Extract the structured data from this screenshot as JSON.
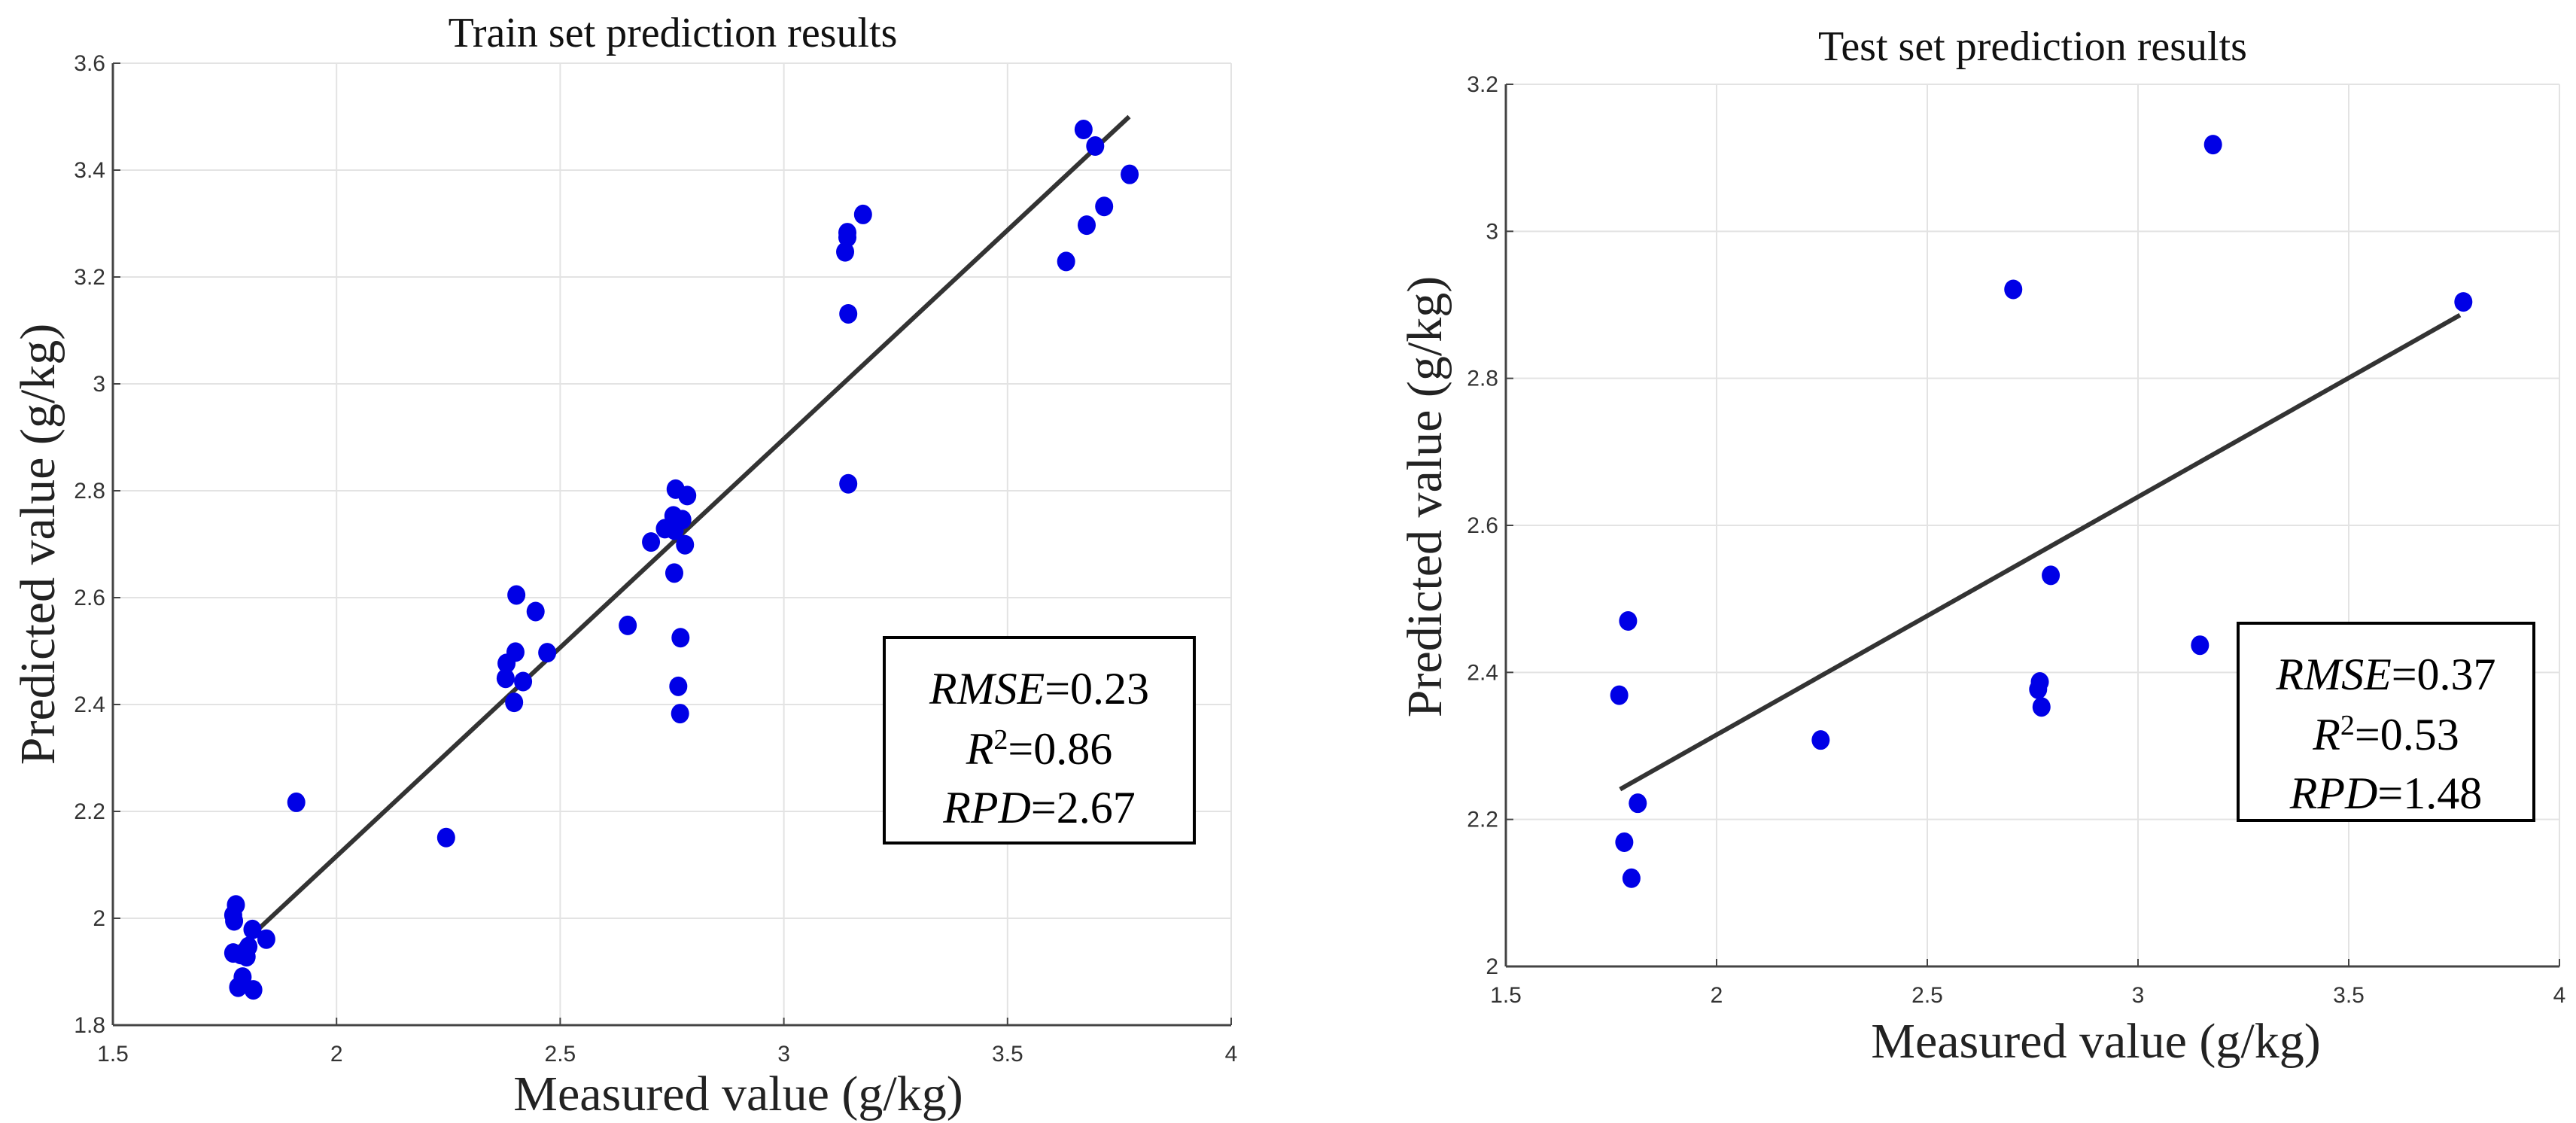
{
  "chart_data": [
    {
      "type": "scatter",
      "title": "Train set prediction results",
      "xlabel": "Measured value (g/kg)",
      "ylabel": "Predicted value  (g/kg)",
      "xlim": [
        1.5,
        4
      ],
      "ylim": [
        1.8,
        3.6
      ],
      "xticks": [
        "1.5",
        "2",
        "2.5",
        "3",
        "3.5",
        "4"
      ],
      "yticks": [
        "1.8",
        "2",
        "2.2",
        "2.4",
        "2.6",
        "2.8",
        "3",
        "3.2",
        "3.4",
        "3.6"
      ],
      "grid": true,
      "point_color": "#0000e6",
      "line_color": "#333333",
      "points": [
        [
          3.67,
          3.476
        ],
        [
          3.696,
          3.445
        ],
        [
          3.773,
          3.392
        ],
        [
          3.716,
          3.332
        ],
        [
          3.677,
          3.297
        ],
        [
          3.631,
          3.229
        ],
        [
          3.177,
          3.317
        ],
        [
          3.142,
          3.283
        ],
        [
          3.142,
          3.274
        ],
        [
          3.137,
          3.247
        ],
        [
          3.144,
          3.131
        ],
        [
          3.144,
          2.813
        ],
        [
          2.758,
          2.803
        ],
        [
          2.784,
          2.791
        ],
        [
          2.753,
          2.753
        ],
        [
          2.773,
          2.746
        ],
        [
          2.734,
          2.729
        ],
        [
          2.756,
          2.726
        ],
        [
          2.703,
          2.704
        ],
        [
          2.779,
          2.699
        ],
        [
          2.755,
          2.646
        ],
        [
          2.651,
          2.548
        ],
        [
          2.769,
          2.525
        ],
        [
          2.764,
          2.434
        ],
        [
          2.768,
          2.383
        ],
        [
          2.402,
          2.605
        ],
        [
          2.445,
          2.574
        ],
        [
          2.471,
          2.497
        ],
        [
          2.4,
          2.498
        ],
        [
          2.38,
          2.477
        ],
        [
          2.378,
          2.449
        ],
        [
          2.417,
          2.443
        ],
        [
          2.397,
          2.404
        ],
        [
          2.245,
          2.151
        ],
        [
          1.91,
          2.217
        ],
        [
          1.775,
          2.025
        ],
        [
          1.769,
          2.006
        ],
        [
          1.771,
          1.995
        ],
        [
          1.812,
          1.979
        ],
        [
          1.843,
          1.961
        ],
        [
          1.803,
          1.947
        ],
        [
          1.769,
          1.935
        ],
        [
          1.786,
          1.932
        ],
        [
          1.799,
          1.928
        ],
        [
          1.79,
          1.89
        ],
        [
          1.78,
          1.871
        ],
        [
          1.814,
          1.866
        ]
      ],
      "fit_line": [
        [
          1.768,
          1.935
        ],
        [
          3.772,
          3.5
        ]
      ],
      "stats": {
        "rmse_label": "RMSE",
        "rmse": "=0.23",
        "r2_label": "R",
        "r2_sup": "2",
        "r2": "=0.86",
        "rpd_label": "RPD",
        "rpd": "=2.67"
      }
    },
    {
      "type": "scatter",
      "title": "Test set prediction results",
      "xlabel": "Measured value (g/kg)",
      "ylabel": "Predicted value (g/kg)",
      "xlim": [
        1.5,
        4
      ],
      "ylim": [
        2,
        3.2
      ],
      "xticks": [
        "1.5",
        "2",
        "2.5",
        "3",
        "3.5",
        "4"
      ],
      "yticks": [
        "2",
        "2.2",
        "2.4",
        "2.6",
        "2.8",
        "3",
        "3.2"
      ],
      "grid": true,
      "point_color": "#0000e6",
      "line_color": "#333333",
      "points": [
        [
          3.178,
          3.118
        ],
        [
          2.704,
          2.921
        ],
        [
          3.772,
          2.904
        ],
        [
          2.793,
          2.532
        ],
        [
          3.147,
          2.437
        ],
        [
          2.767,
          2.387
        ],
        [
          2.763,
          2.377
        ],
        [
          2.771,
          2.353
        ],
        [
          1.79,
          2.47
        ],
        [
          1.769,
          2.369
        ],
        [
          2.247,
          2.308
        ],
        [
          1.813,
          2.222
        ],
        [
          1.781,
          2.169
        ],
        [
          1.798,
          2.12
        ]
      ],
      "fit_line": [
        [
          1.771,
          2.241
        ],
        [
          3.764,
          2.886
        ]
      ],
      "stats": {
        "rmse_label": "RMSE",
        "rmse": "=0.37",
        "r2_label": "R",
        "r2_sup": "2",
        "r2": "=0.53",
        "rpd_label": "RPD",
        "rpd": "=1.48"
      }
    }
  ]
}
